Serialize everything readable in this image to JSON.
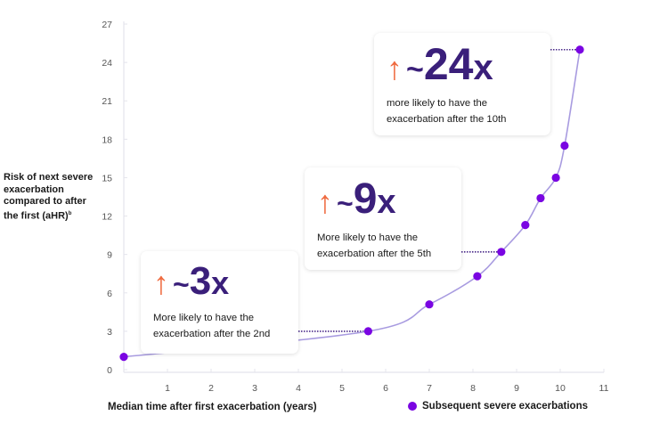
{
  "chart_data": {
    "type": "line",
    "title": "",
    "xlabel": "Median time after first exacerbation (years)",
    "ylabel": "Risk of next severe exacerbation compared to after the first (aHR)",
    "ylabel_superscript": "b",
    "xlim": [
      0,
      11
    ],
    "ylim": [
      0,
      27
    ],
    "x_ticks": [
      1,
      2,
      3,
      4,
      5,
      6,
      7,
      8,
      9,
      10,
      11
    ],
    "y_ticks": [
      0,
      3,
      6,
      9,
      12,
      15,
      18,
      21,
      24,
      27
    ],
    "grid": false,
    "legend_position": "bottom-right",
    "series": [
      {
        "name": "Subsequent severe exacerbations",
        "color": "#7a05e2",
        "line_color": "#a89be0",
        "x": [
          0,
          5.6,
          7.0,
          8.1,
          8.65,
          9.2,
          9.55,
          9.9,
          10.1,
          10.45
        ],
        "values": [
          1,
          3,
          5.1,
          7.3,
          9.2,
          11.3,
          13.4,
          15.0,
          17.5,
          25
        ]
      }
    ],
    "annotations": [
      {
        "point_index": 1,
        "multiplier": "~3x",
        "text": "More likely to have the exacerbation after the 2nd"
      },
      {
        "point_index": 4,
        "multiplier": "~9x",
        "text": "More likely to have the exacerbation after the 5th"
      },
      {
        "point_index": 9,
        "multiplier": "~24x",
        "text": "more likely to have the exacerbation after the 10th"
      }
    ]
  },
  "labels": {
    "ylabel_text": "Risk of next severe exacerbation compared to after the first (aHR)",
    "ylabel_sup": "b",
    "xlabel": "Median time after first exacerbation (years)",
    "legend": "Subsequent severe exacerbations"
  },
  "cards": [
    {
      "arrow": "↑",
      "tilde": "~",
      "num": "3",
      "x": "x",
      "line1": "More likely to have the",
      "line2": "exacerbation after the 2nd"
    },
    {
      "arrow": "↑",
      "tilde": "~",
      "num": "9",
      "x": "x",
      "line1": "More likely to have the",
      "line2": "exacerbation after the 5th"
    },
    {
      "arrow": "↑",
      "tilde": "~",
      "num": "24",
      "x": "x",
      "line1": "more likely to have the",
      "line2": "exacerbation after the 10th"
    }
  ],
  "colors": {
    "point": "#7a05e2",
    "line": "#a89be0",
    "arrow": "#ef6a3f",
    "multiplier": "#3a1f7a",
    "axis": "#e4e4ec",
    "tick_text": "#555555"
  }
}
